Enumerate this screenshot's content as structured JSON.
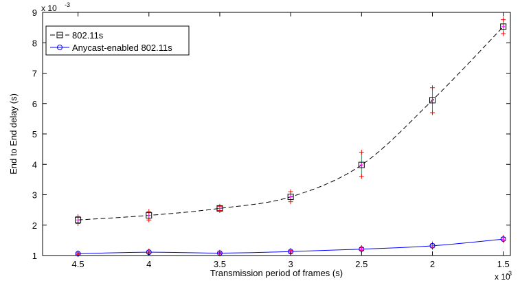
{
  "chart_data": {
    "type": "line",
    "xlabel": "Transmission period of frames (s)",
    "ylabel": "End to End delay (s)",
    "x_exponent_label": "x 10",
    "x_exponent_power": "-3",
    "y_exponent_label": "x 10",
    "y_exponent_power": "-3",
    "x": [
      4.5,
      4,
      3.5,
      3,
      2.5,
      2,
      1.5
    ],
    "x_reversed": true,
    "xlim": [
      4.75,
      1.45
    ],
    "ylim": [
      1,
      9
    ],
    "x_ticks": [
      4.5,
      4,
      3.5,
      3,
      2.5,
      2,
      1.5
    ],
    "x_tick_labels": [
      "4.5",
      "4",
      "3.5",
      "3",
      "2.5",
      "2",
      "1.5"
    ],
    "y_ticks": [
      1,
      2,
      3,
      4,
      5,
      6,
      7,
      8,
      9
    ],
    "y_tick_labels": [
      "1",
      "2",
      "3",
      "4",
      "5",
      "6",
      "7",
      "8",
      "9"
    ],
    "grid": false,
    "legend_position": "top-left",
    "series": [
      {
        "name": "802.11s",
        "color": "#000000",
        "line_style": "dashed",
        "marker": "square",
        "values": [
          2.17,
          2.32,
          2.55,
          2.93,
          3.98,
          6.11,
          8.53
        ],
        "error_low": [
          2.05,
          2.17,
          2.48,
          2.77,
          3.6,
          5.7,
          8.3
        ],
        "error_high": [
          2.28,
          2.45,
          2.62,
          3.1,
          4.4,
          6.52,
          8.76
        ]
      },
      {
        "name": "Anycast-enabled 802.11s",
        "color": "#0000ff",
        "line_style": "solid",
        "marker": "circle",
        "values": [
          1.06,
          1.11,
          1.08,
          1.13,
          1.21,
          1.32,
          1.54
        ],
        "error_low": [
          1.03,
          1.07,
          1.05,
          1.09,
          1.17,
          1.27,
          1.49
        ],
        "error_high": [
          1.09,
          1.15,
          1.11,
          1.17,
          1.26,
          1.38,
          1.6
        ]
      }
    ]
  }
}
